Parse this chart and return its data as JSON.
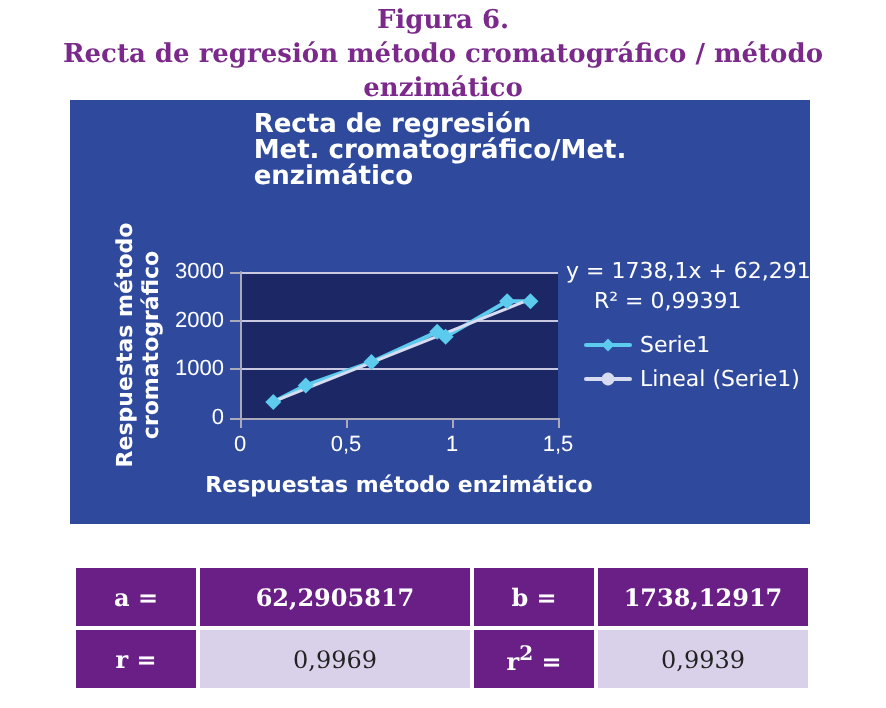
{
  "chart_data": {
    "type": "line",
    "title": "Figura 6.",
    "subtitle": "Recta de regresión método cromatográfico / método enzimático",
    "xlabel": "Respuestas método enzimático",
    "ylabel": "Respuestas método cromatográfico",
    "x": [
      0.157,
      0.31,
      0.62,
      0.93,
      0.97,
      1.26,
      1.37
    ],
    "series": [
      {
        "name": "Serie1",
        "color": "#5ccbee",
        "values": [
          330,
          670,
          1150,
          1770,
          1670,
          2400,
          2400
        ]
      },
      {
        "name": "Lineal (Serie1)",
        "type": "line",
        "color": "#d8dcf0",
        "x": [
          0.157,
          1.37
        ],
        "values": [
          335,
          2443
        ],
        "marker": "none"
      }
    ],
    "xlim": [
      0,
      1.5
    ],
    "xticks": [
      0,
      {
        "value": 0.5,
        "label": "0,5"
      },
      1,
      {
        "value": 1.5,
        "label": "1,5"
      }
    ],
    "ylim": [
      0,
      3000
    ],
    "yticks": [
      0,
      1000,
      2000,
      3000
    ],
    "grid": "y",
    "legend": "right",
    "marker": "diamond",
    "annotations": [
      "Recta de regresión\nMet. cromatográfico/Met.\nenzimático",
      "y = 1738,1x + 62,291",
      "R² = 0,99391",
      "a =",
      "62,2905817",
      "b =",
      "1738,12917",
      "r =",
      "0,9969",
      "r$^{2}$ =",
      "0,9939"
    ]
  }
}
